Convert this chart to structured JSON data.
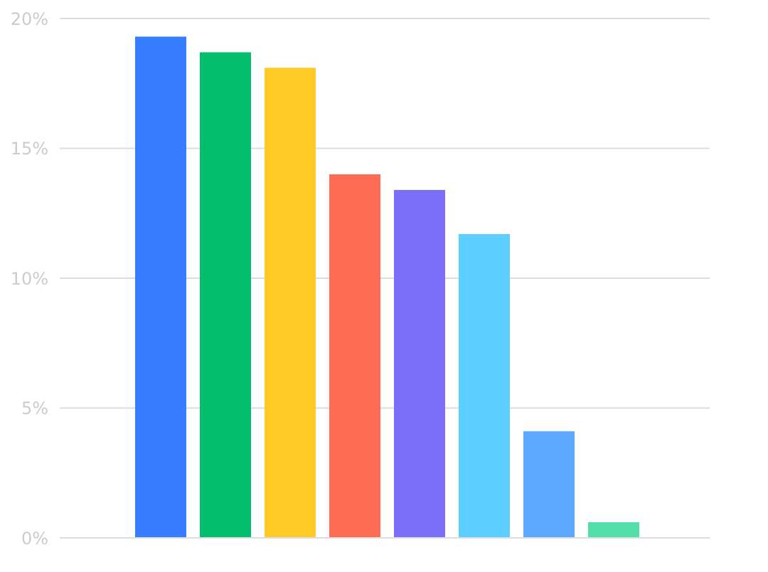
{
  "chart_data": {
    "type": "bar",
    "categories": [
      null,
      null,
      null,
      null,
      null,
      null,
      null,
      null
    ],
    "values": [
      19.3,
      18.7,
      18.1,
      14.0,
      13.4,
      11.7,
      4.1,
      0.6
    ],
    "colors": [
      "#377dff",
      "#00be6e",
      "#ffca26",
      "#ff6b55",
      "#7b6ffa",
      "#5ccfff",
      "#5aa9ff",
      "#52e0a9"
    ],
    "ylim": [
      0,
      20
    ],
    "yticks": [
      {
        "value": 0,
        "label": "0%"
      },
      {
        "value": 5,
        "label": "5%"
      },
      {
        "value": 10,
        "label": "10%"
      },
      {
        "value": 15,
        "label": "15%"
      },
      {
        "value": 20,
        "label": "20%"
      }
    ],
    "grid": "y",
    "legend": false
  }
}
